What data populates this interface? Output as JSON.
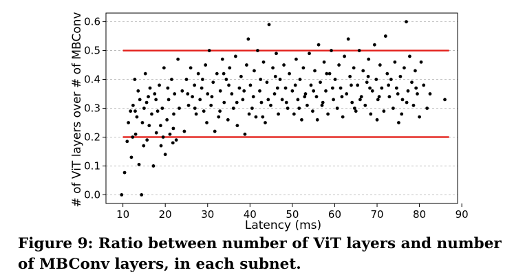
{
  "caption": "Figure 9: Ratio between number of ViT layers and number of MBConv layers, in each subnet.",
  "chart_data": {
    "type": "scatter",
    "title": "",
    "xlabel": "Latency (ms)",
    "ylabel": "# of ViT layers over # of MBConv",
    "xlim": [
      6,
      89
    ],
    "ylim": [
      -0.03,
      0.63
    ],
    "xticks": [
      10,
      20,
      30,
      40,
      50,
      60,
      70,
      80,
      90
    ],
    "xtick_labels": [
      "10",
      "20",
      "30",
      "40",
      "50",
      "60",
      "70",
      "80",
      "90"
    ],
    "yticks": [
      0.0,
      0.1,
      0.2,
      0.3,
      0.4,
      0.5,
      0.6
    ],
    "ytick_labels": [
      "0.0",
      "0.1",
      "0.2",
      "0.3",
      "0.4",
      "0.5",
      "0.6"
    ],
    "grid": "y-dashed",
    "reference_lines": [
      {
        "y": 0.5,
        "x_range": [
          10,
          87
        ],
        "color": "#e3201b"
      },
      {
        "y": 0.2,
        "x_range": [
          10,
          87
        ],
        "color": "#e3201b"
      }
    ],
    "marker_color": "#000000",
    "points": [
      [
        9.7,
        0.0
      ],
      [
        10.4,
        0.077
      ],
      [
        11.0,
        0.185
      ],
      [
        11.3,
        0.25
      ],
      [
        11.8,
        0.29
      ],
      [
        12.0,
        0.13
      ],
      [
        12.4,
        0.31
      ],
      [
        12.8,
        0.4
      ],
      [
        13.0,
        0.21
      ],
      [
        13.3,
        0.27
      ],
      [
        13.8,
        0.105
      ],
      [
        14.0,
        0.33
      ],
      [
        14.4,
        0.0
      ],
      [
        14.6,
        0.25
      ],
      [
        15.0,
        0.3
      ],
      [
        15.3,
        0.42
      ],
      [
        15.7,
        0.19
      ],
      [
        16.0,
        0.34
      ],
      [
        16.4,
        0.37
      ],
      [
        16.8,
        0.28
      ],
      [
        17.2,
        0.1
      ],
      [
        17.5,
        0.35
      ],
      [
        17.9,
        0.215
      ],
      [
        18.2,
        0.29
      ],
      [
        18.6,
        0.38
      ],
      [
        19.0,
        0.17
      ],
      [
        19.3,
        0.3
      ],
      [
        19.7,
        0.44
      ],
      [
        20.0,
        0.14
      ],
      [
        20.4,
        0.26
      ],
      [
        20.8,
        0.33
      ],
      [
        21.1,
        0.21
      ],
      [
        21.5,
        0.4
      ],
      [
        21.9,
        0.23
      ],
      [
        22.2,
        0.35
      ],
      [
        22.6,
        0.19
      ],
      [
        23.0,
        0.47
      ],
      [
        23.3,
        0.3
      ],
      [
        12.3,
        0.2
      ],
      [
        13.6,
        0.36
      ],
      [
        14.9,
        0.17
      ],
      [
        16.2,
        0.24
      ],
      [
        17.8,
        0.33
      ],
      [
        19.5,
        0.2
      ],
      [
        20.6,
        0.37
      ],
      [
        22.0,
        0.28
      ],
      [
        12.9,
        0.29
      ],
      [
        15.6,
        0.32
      ],
      [
        18.9,
        0.24
      ],
      [
        21.8,
        0.18
      ],
      [
        24.0,
        0.36
      ],
      [
        24.5,
        0.22
      ],
      [
        25.0,
        0.4
      ],
      [
        25.5,
        0.31
      ],
      [
        26.0,
        0.44
      ],
      [
        26.4,
        0.34
      ],
      [
        26.9,
        0.38
      ],
      [
        27.3,
        0.28
      ],
      [
        27.8,
        0.42
      ],
      [
        28.2,
        0.33
      ],
      [
        28.6,
        0.37
      ],
      [
        29.1,
        0.29
      ],
      [
        29.5,
        0.45
      ],
      [
        30.0,
        0.35
      ],
      [
        30.4,
        0.5
      ],
      [
        30.8,
        0.31
      ],
      [
        31.3,
        0.39
      ],
      [
        31.7,
        0.22
      ],
      [
        32.2,
        0.42
      ],
      [
        32.6,
        0.27
      ],
      [
        33.0,
        0.36
      ],
      [
        33.5,
        0.47
      ],
      [
        33.9,
        0.32
      ],
      [
        34.4,
        0.4
      ],
      [
        34.8,
        0.26
      ],
      [
        35.2,
        0.44
      ],
      [
        35.7,
        0.35
      ],
      [
        36.1,
        0.3
      ],
      [
        36.6,
        0.48
      ],
      [
        37.0,
        0.24
      ],
      [
        37.5,
        0.37
      ],
      [
        37.9,
        0.41
      ],
      [
        38.3,
        0.33
      ],
      [
        38.8,
        0.21
      ],
      [
        39.2,
        0.45
      ],
      [
        39.6,
        0.54
      ],
      [
        40.1,
        0.38
      ],
      [
        40.5,
        0.3
      ],
      [
        41.0,
        0.43
      ],
      [
        41.4,
        0.27
      ],
      [
        41.8,
        0.5
      ],
      [
        42.3,
        0.36
      ],
      [
        42.7,
        0.32
      ],
      [
        43.2,
        0.46
      ],
      [
        43.6,
        0.25
      ],
      [
        44.0,
        0.39
      ],
      [
        44.5,
        0.59
      ],
      [
        44.9,
        0.31
      ],
      [
        45.4,
        0.44
      ],
      [
        45.8,
        0.35
      ],
      [
        46.2,
        0.49
      ],
      [
        46.7,
        0.28
      ],
      [
        47.1,
        0.4
      ],
      [
        47.6,
        0.33
      ],
      [
        48.0,
        0.45
      ],
      [
        48.4,
        0.37
      ],
      [
        48.9,
        0.3
      ],
      [
        49.3,
        0.42
      ],
      [
        50.0,
        0.36
      ],
      [
        50.4,
        0.28
      ],
      [
        50.9,
        0.47
      ],
      [
        51.3,
        0.33
      ],
      [
        51.8,
        0.4
      ],
      [
        52.2,
        0.26
      ],
      [
        52.6,
        0.44
      ],
      [
        53.1,
        0.35
      ],
      [
        53.5,
        0.31
      ],
      [
        54.0,
        0.49
      ],
      [
        54.4,
        0.38
      ],
      [
        54.8,
        0.29
      ],
      [
        55.3,
        0.43
      ],
      [
        55.7,
        0.34
      ],
      [
        56.2,
        0.52
      ],
      [
        56.6,
        0.39
      ],
      [
        57.0,
        0.31
      ],
      [
        57.5,
        0.46
      ],
      [
        57.9,
        0.36
      ],
      [
        58.4,
        0.28
      ],
      [
        58.8,
        0.42
      ],
      [
        59.2,
        0.5
      ],
      [
        59.7,
        0.33
      ],
      [
        60.1,
        0.4
      ],
      [
        60.6,
        0.3
      ],
      [
        61.0,
        0.45
      ],
      [
        61.4,
        0.37
      ],
      [
        61.9,
        0.27
      ],
      [
        62.3,
        0.48
      ],
      [
        62.8,
        0.35
      ],
      [
        63.2,
        0.54
      ],
      [
        63.6,
        0.41
      ],
      [
        64.1,
        0.32
      ],
      [
        64.5,
        0.44
      ],
      [
        65.0,
        0.29
      ],
      [
        65.4,
        0.38
      ],
      [
        65.8,
        0.5
      ],
      [
        66.3,
        0.34
      ],
      [
        66.7,
        0.43
      ],
      [
        67.2,
        0.31
      ],
      [
        67.6,
        0.39
      ],
      [
        68.0,
        0.47
      ],
      [
        68.5,
        0.28
      ],
      [
        68.9,
        0.36
      ],
      [
        69.4,
        0.52
      ],
      [
        69.8,
        0.4
      ],
      [
        70.2,
        0.33
      ],
      [
        70.7,
        0.45
      ],
      [
        71.1,
        0.37
      ],
      [
        71.6,
        0.29
      ],
      [
        72.0,
        0.55
      ],
      [
        72.4,
        0.42
      ],
      [
        72.9,
        0.34
      ],
      [
        73.3,
        0.4
      ],
      [
        73.8,
        0.3
      ],
      [
        74.2,
        0.46
      ],
      [
        74.6,
        0.37
      ],
      [
        75.1,
        0.25
      ],
      [
        75.5,
        0.41
      ],
      [
        76.0,
        0.33
      ],
      [
        76.4,
        0.44
      ],
      [
        76.9,
        0.6
      ],
      [
        77.3,
        0.36
      ],
      [
        77.7,
        0.48
      ],
      [
        78.2,
        0.39
      ],
      [
        78.6,
        0.31
      ],
      [
        79.0,
        0.43
      ],
      [
        79.5,
        0.35
      ],
      [
        80.0,
        0.27
      ],
      [
        80.4,
        0.46
      ],
      [
        81.0,
        0.38
      ],
      [
        81.8,
        0.3
      ],
      [
        82.5,
        0.35
      ],
      [
        86.0,
        0.33
      ],
      [
        25.3,
        0.35
      ],
      [
        27.0,
        0.3
      ],
      [
        28.8,
        0.4
      ],
      [
        31.0,
        0.34
      ],
      [
        32.9,
        0.29
      ],
      [
        35.0,
        0.38
      ],
      [
        36.9,
        0.32
      ],
      [
        38.6,
        0.36
      ],
      [
        40.8,
        0.34
      ],
      [
        42.5,
        0.4
      ],
      [
        44.3,
        0.33
      ],
      [
        46.5,
        0.37
      ],
      [
        48.6,
        0.32
      ],
      [
        50.7,
        0.38
      ],
      [
        52.9,
        0.34
      ],
      [
        55.0,
        0.36
      ],
      [
        57.2,
        0.32
      ],
      [
        59.5,
        0.37
      ],
      [
        61.7,
        0.34
      ],
      [
        63.9,
        0.38
      ],
      [
        66.0,
        0.33
      ],
      [
        68.3,
        0.37
      ],
      [
        70.5,
        0.34
      ],
      [
        72.7,
        0.38
      ],
      [
        74.9,
        0.35
      ],
      [
        77.0,
        0.32
      ],
      [
        79.2,
        0.37
      ],
      [
        33.8,
        0.42
      ],
      [
        46.0,
        0.41
      ],
      [
        58.1,
        0.42
      ],
      [
        67.9,
        0.41
      ],
      [
        39.8,
        0.28
      ],
      [
        51.6,
        0.3
      ],
      [
        64.7,
        0.3
      ],
      [
        75.8,
        0.28
      ],
      [
        29.8,
        0.25
      ],
      [
        43.0,
        0.27
      ],
      [
        55.9,
        0.26
      ],
      [
        70.0,
        0.26
      ]
    ]
  }
}
